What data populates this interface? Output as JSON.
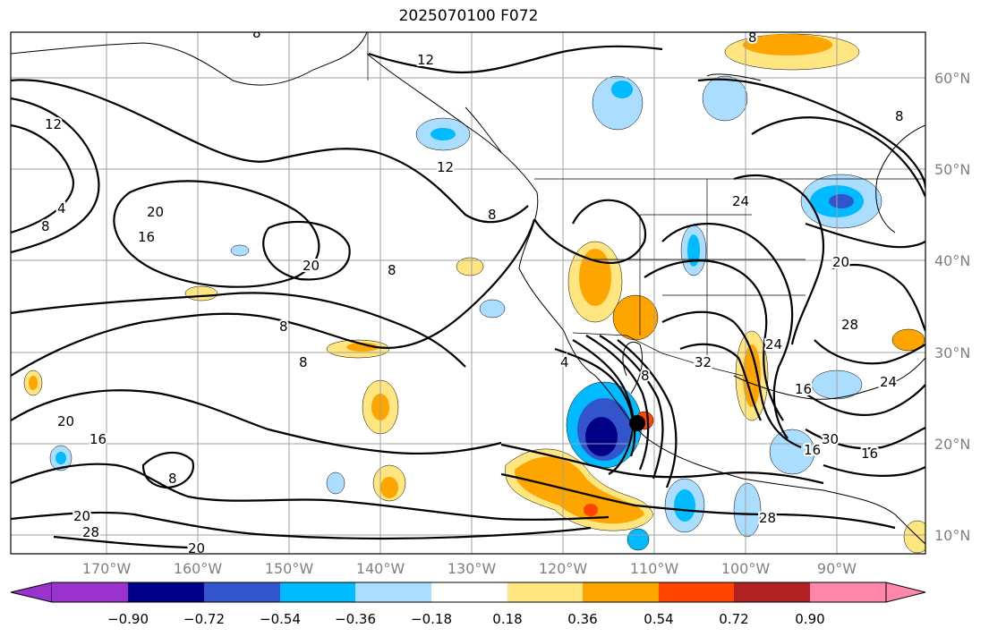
{
  "title": "2025070100 F072",
  "lat_labels": [
    "60°N",
    "50°N",
    "40°N",
    "30°N",
    "20°N",
    "10°N"
  ],
  "lon_labels": [
    "170°W",
    "160°W",
    "150°W",
    "140°W",
    "130°W",
    "120°W",
    "110°W",
    "100°W",
    "90°W"
  ],
  "colorbar": {
    "ticks": [
      "−0.90",
      "−0.72",
      "−0.54",
      "−0.36",
      "−0.18",
      "0.18",
      "0.36",
      "0.54",
      "0.72",
      "0.90"
    ],
    "colors": [
      "#9933cc",
      "#000088",
      "#3355cc",
      "#00bbff",
      "#aaddff",
      "#ffffff",
      "#ffe680",
      "#ffa500",
      "#ff4500",
      "#b22222",
      "#ff88aa"
    ]
  },
  "contour_labels": [
    "12",
    "12",
    "12",
    "8",
    "8",
    "8",
    "8",
    "8",
    "4",
    "20",
    "20",
    "16",
    "20",
    "8",
    "8",
    "4",
    "20",
    "16",
    "8",
    "20",
    "28",
    "28",
    "24",
    "20",
    "24",
    "32",
    "16",
    "30",
    "16",
    "16",
    "28",
    "8",
    "8",
    "24"
  ],
  "colors": {
    "grid": "#a0a0a0",
    "contour": "#000000"
  }
}
